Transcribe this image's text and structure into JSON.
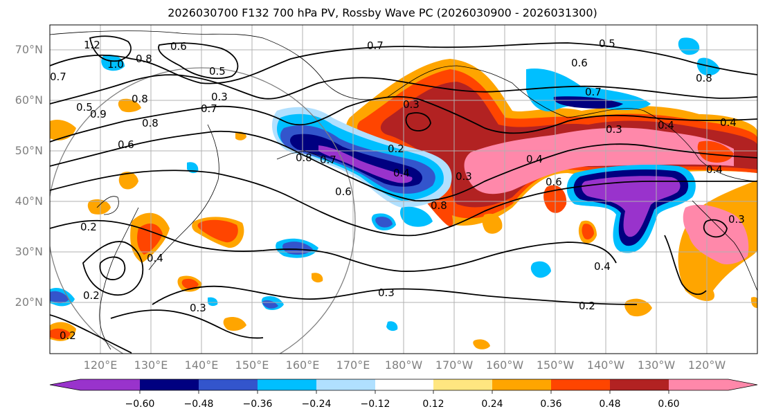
{
  "title": "2026030700 F132 700 hPa PV, Rossby Wave PC (2026030900 - 2026031300)",
  "lat_labels": [
    "70°N",
    "60°N",
    "50°N",
    "40°N",
    "30°N",
    "20°N"
  ],
  "lon_labels": [
    "120°E",
    "130°E",
    "140°E",
    "150°E",
    "160°E",
    "170°E",
    "180°W",
    "170°W",
    "160°W",
    "150°W",
    "140°W",
    "130°W",
    "120°W"
  ],
  "colorbar": {
    "colors": [
      "#9933cc",
      "#000080",
      "#3355cc",
      "#00bfff",
      "#b0e0ff",
      "#ffffff",
      "#ffe680",
      "#ffa500",
      "#ff4500",
      "#b22222",
      "#ff88aa"
    ],
    "tick_labels": [
      "−0.60",
      "−0.48",
      "−0.36",
      "−0.24",
      "−0.12",
      "0.12",
      "0.24",
      "0.36",
      "0.48",
      "0.60"
    ]
  },
  "contour_labels": [
    "1.2",
    "1.0",
    "0.8",
    "0.6",
    "0.5",
    "0.7",
    "0.7",
    "0.5",
    "0.6",
    "0.9",
    "0.8",
    "0.7",
    "0.6",
    "0.5",
    "0.3",
    "0.2",
    "0.4",
    "0.8",
    "0.7",
    "0.4",
    "0.6",
    "0.3",
    "0.8",
    "0.3",
    "0.7",
    "0.8",
    "0.4",
    "0.4",
    "0.6",
    "0.3",
    "0.2",
    "0.3",
    "0.2",
    "0.4",
    "0.2",
    "0.2",
    "0.3",
    "0.4",
    "0.3",
    "0.4",
    "0.8"
  ]
}
